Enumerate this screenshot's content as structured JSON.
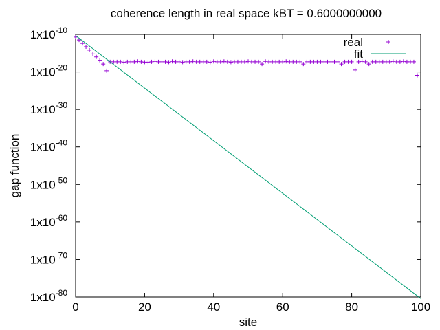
{
  "chart_data": {
    "type": "scatter",
    "title": "coherence length in real space kBT = 0.6000000000",
    "xlabel": "site",
    "ylabel": "gap function",
    "xlim": [
      0,
      100
    ],
    "ylim_exponent": [
      -80,
      -10
    ],
    "y_scale": "log",
    "grid": false,
    "legend_placement": "top-right",
    "x_ticks": [
      {
        "value": 0,
        "label": "0"
      },
      {
        "value": 20,
        "label": "20"
      },
      {
        "value": 40,
        "label": "40"
      },
      {
        "value": 60,
        "label": "60"
      },
      {
        "value": 80,
        "label": "80"
      },
      {
        "value": 100,
        "label": "100"
      }
    ],
    "y_ticks": [
      {
        "exponent": -10,
        "mantissa": "1x10",
        "power": "-10"
      },
      {
        "exponent": -20,
        "mantissa": "1x10",
        "power": "-20"
      },
      {
        "exponent": -30,
        "mantissa": "1x10",
        "power": "-30"
      },
      {
        "exponent": -40,
        "mantissa": "1x10",
        "power": "-40"
      },
      {
        "exponent": -50,
        "mantissa": "1x10",
        "power": "-50"
      },
      {
        "exponent": -60,
        "mantissa": "1x10",
        "power": "-60"
      },
      {
        "exponent": -70,
        "mantissa": "1x10",
        "power": "-70"
      },
      {
        "exponent": -80,
        "mantissa": "1x10",
        "power": "-80"
      }
    ],
    "series": [
      {
        "name": "real",
        "style": "points",
        "marker": "+",
        "color": "#9400d3",
        "x": [
          0,
          1,
          2,
          3,
          4,
          5,
          6,
          7,
          8,
          9,
          10,
          11,
          12,
          13,
          14,
          15,
          16,
          17,
          18,
          19,
          20,
          21,
          22,
          23,
          24,
          25,
          26,
          27,
          28,
          29,
          30,
          31,
          32,
          33,
          34,
          35,
          36,
          37,
          38,
          39,
          40,
          41,
          42,
          43,
          44,
          45,
          46,
          47,
          48,
          49,
          50,
          51,
          52,
          53,
          54,
          55,
          56,
          57,
          58,
          59,
          60,
          61,
          62,
          63,
          64,
          65,
          66,
          67,
          68,
          69,
          70,
          71,
          72,
          73,
          74,
          75,
          76,
          77,
          78,
          79,
          80,
          81,
          82,
          83,
          84,
          85,
          86,
          87,
          88,
          89,
          90,
          91,
          92,
          93,
          94,
          95,
          96,
          97,
          98,
          99
        ],
        "log10_y": [
          -10.7,
          -11.5,
          -12.4,
          -13.3,
          -14.2,
          -15.2,
          -16.0,
          -16.9,
          -17.9,
          -19.7,
          -17.3,
          -17.3,
          -17.3,
          -17.3,
          -17.4,
          -17.3,
          -17.3,
          -17.3,
          -17.2,
          -17.3,
          -17.4,
          -17.4,
          -17.3,
          -17.2,
          -17.3,
          -17.3,
          -17.3,
          -17.4,
          -17.2,
          -17.3,
          -17.3,
          -17.4,
          -17.3,
          -17.3,
          -17.2,
          -17.3,
          -17.3,
          -17.3,
          -17.3,
          -17.4,
          -17.2,
          -17.3,
          -17.3,
          -17.2,
          -17.3,
          -17.4,
          -17.3,
          -17.3,
          -17.3,
          -17.3,
          -17.2,
          -17.3,
          -17.3,
          -17.3,
          -17.9,
          -17.2,
          -17.3,
          -17.3,
          -17.3,
          -17.3,
          -17.3,
          -17.2,
          -17.3,
          -17.3,
          -17.3,
          -17.3,
          -17.9,
          -17.3,
          -17.3,
          -17.3,
          -17.3,
          -17.3,
          -17.3,
          -17.3,
          -17.3,
          -17.3,
          -17.3,
          -17.9,
          -17.3,
          -17.3,
          -17.3,
          -19.5,
          -17.3,
          -17.2,
          -17.3,
          -17.9,
          -17.3,
          -17.3,
          -17.3,
          -17.3,
          -17.3,
          -17.3,
          -17.2,
          -17.3,
          -17.3,
          -17.2,
          -17.3,
          -17.3,
          -17.3,
          -20.9
        ]
      },
      {
        "name": "fit",
        "style": "line",
        "color": "#009e73",
        "x": [
          0,
          100
        ],
        "log10_y": [
          -10.3,
          -80.4
        ]
      }
    ]
  }
}
